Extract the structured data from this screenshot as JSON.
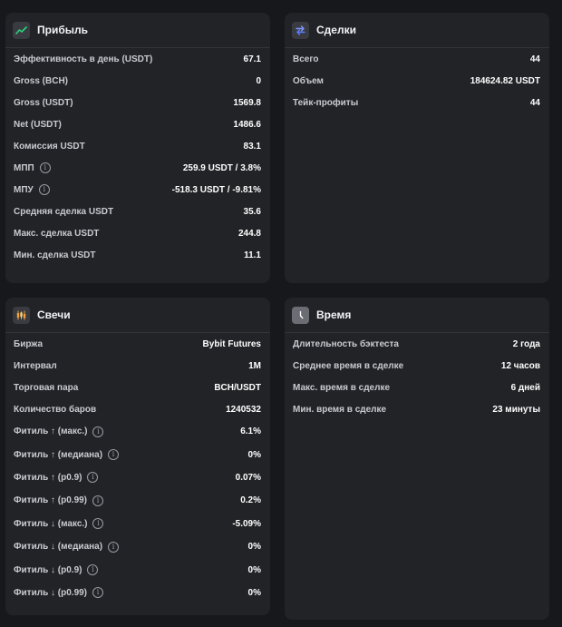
{
  "profit": {
    "title": "Прибыль",
    "rows": [
      {
        "label": "Эффективность в день (USDT)",
        "value": "67.1"
      },
      {
        "label": "Gross (BCH)",
        "value": "0"
      },
      {
        "label": "Gross (USDT)",
        "value": "1569.8"
      },
      {
        "label": "Net (USDT)",
        "value": "1486.6"
      },
      {
        "label": "Комиссия USDT",
        "value": "83.1"
      },
      {
        "label": "МПП",
        "value": "259.9 USDT / 3.8%"
      },
      {
        "label": "МПУ",
        "value": "-518.3 USDT / -9.81%"
      },
      {
        "label": "Средняя сделка USDT",
        "value": "35.6"
      },
      {
        "label": "Макс. сделка USDT",
        "value": "244.8"
      },
      {
        "label": "Мин. сделка USDT",
        "value": "11.1"
      }
    ]
  },
  "deals": {
    "title": "Сделки",
    "rows": [
      {
        "label": "Всего",
        "value": "44"
      },
      {
        "label": "Объем",
        "value": "184624.82 USDT"
      },
      {
        "label": "Тейк-профиты",
        "value": "44"
      }
    ]
  },
  "candles": {
    "title": "Свечи",
    "rows": [
      {
        "label": "Биржа",
        "value": "Bybit Futures"
      },
      {
        "label": "Интервал",
        "value": "1M"
      },
      {
        "label": "Торговая пара",
        "value": "BCH/USDT"
      },
      {
        "label": "Количество баров",
        "value": "1240532"
      },
      {
        "label": "Фитиль ↑ (макс.)",
        "value": "6.1%"
      },
      {
        "label": "Фитиль ↑ (медиана)",
        "value": "0%"
      },
      {
        "label": "Фитиль ↑ (p0.9)",
        "value": "0.07%"
      },
      {
        "label": "Фитиль ↑ (p0.99)",
        "value": "0.2%"
      },
      {
        "label": "Фитиль ↓ (макс.)",
        "value": "-5.09%"
      },
      {
        "label": "Фитиль ↓ (медиана)",
        "value": "0%"
      },
      {
        "label": "Фитиль ↓ (p0.9)",
        "value": "0%"
      },
      {
        "label": "Фитиль ↓ (p0.99)",
        "value": "0%"
      }
    ]
  },
  "time": {
    "title": "Время",
    "rows": [
      {
        "label": "Длительность бэктеста",
        "value": "2 года"
      },
      {
        "label": "Среднее время в сделке",
        "value": "12 часов"
      },
      {
        "label": "Макс. время в сделке",
        "value": "6 дней"
      },
      {
        "label": "Мин. время в сделке",
        "value": "23 минуты"
      }
    ]
  },
  "icons": {
    "profit": "chart-trend-icon",
    "deals": "swap-arrows-icon",
    "candles": "candlestick-icon",
    "time": "clock-icon",
    "info": "info-icon"
  },
  "colors": {
    "background": "#17181c",
    "card": "#222327",
    "profit_accent": "#2bd17e",
    "deals_accent": "#5b7cff",
    "candles_accent": "#f0a23b"
  }
}
